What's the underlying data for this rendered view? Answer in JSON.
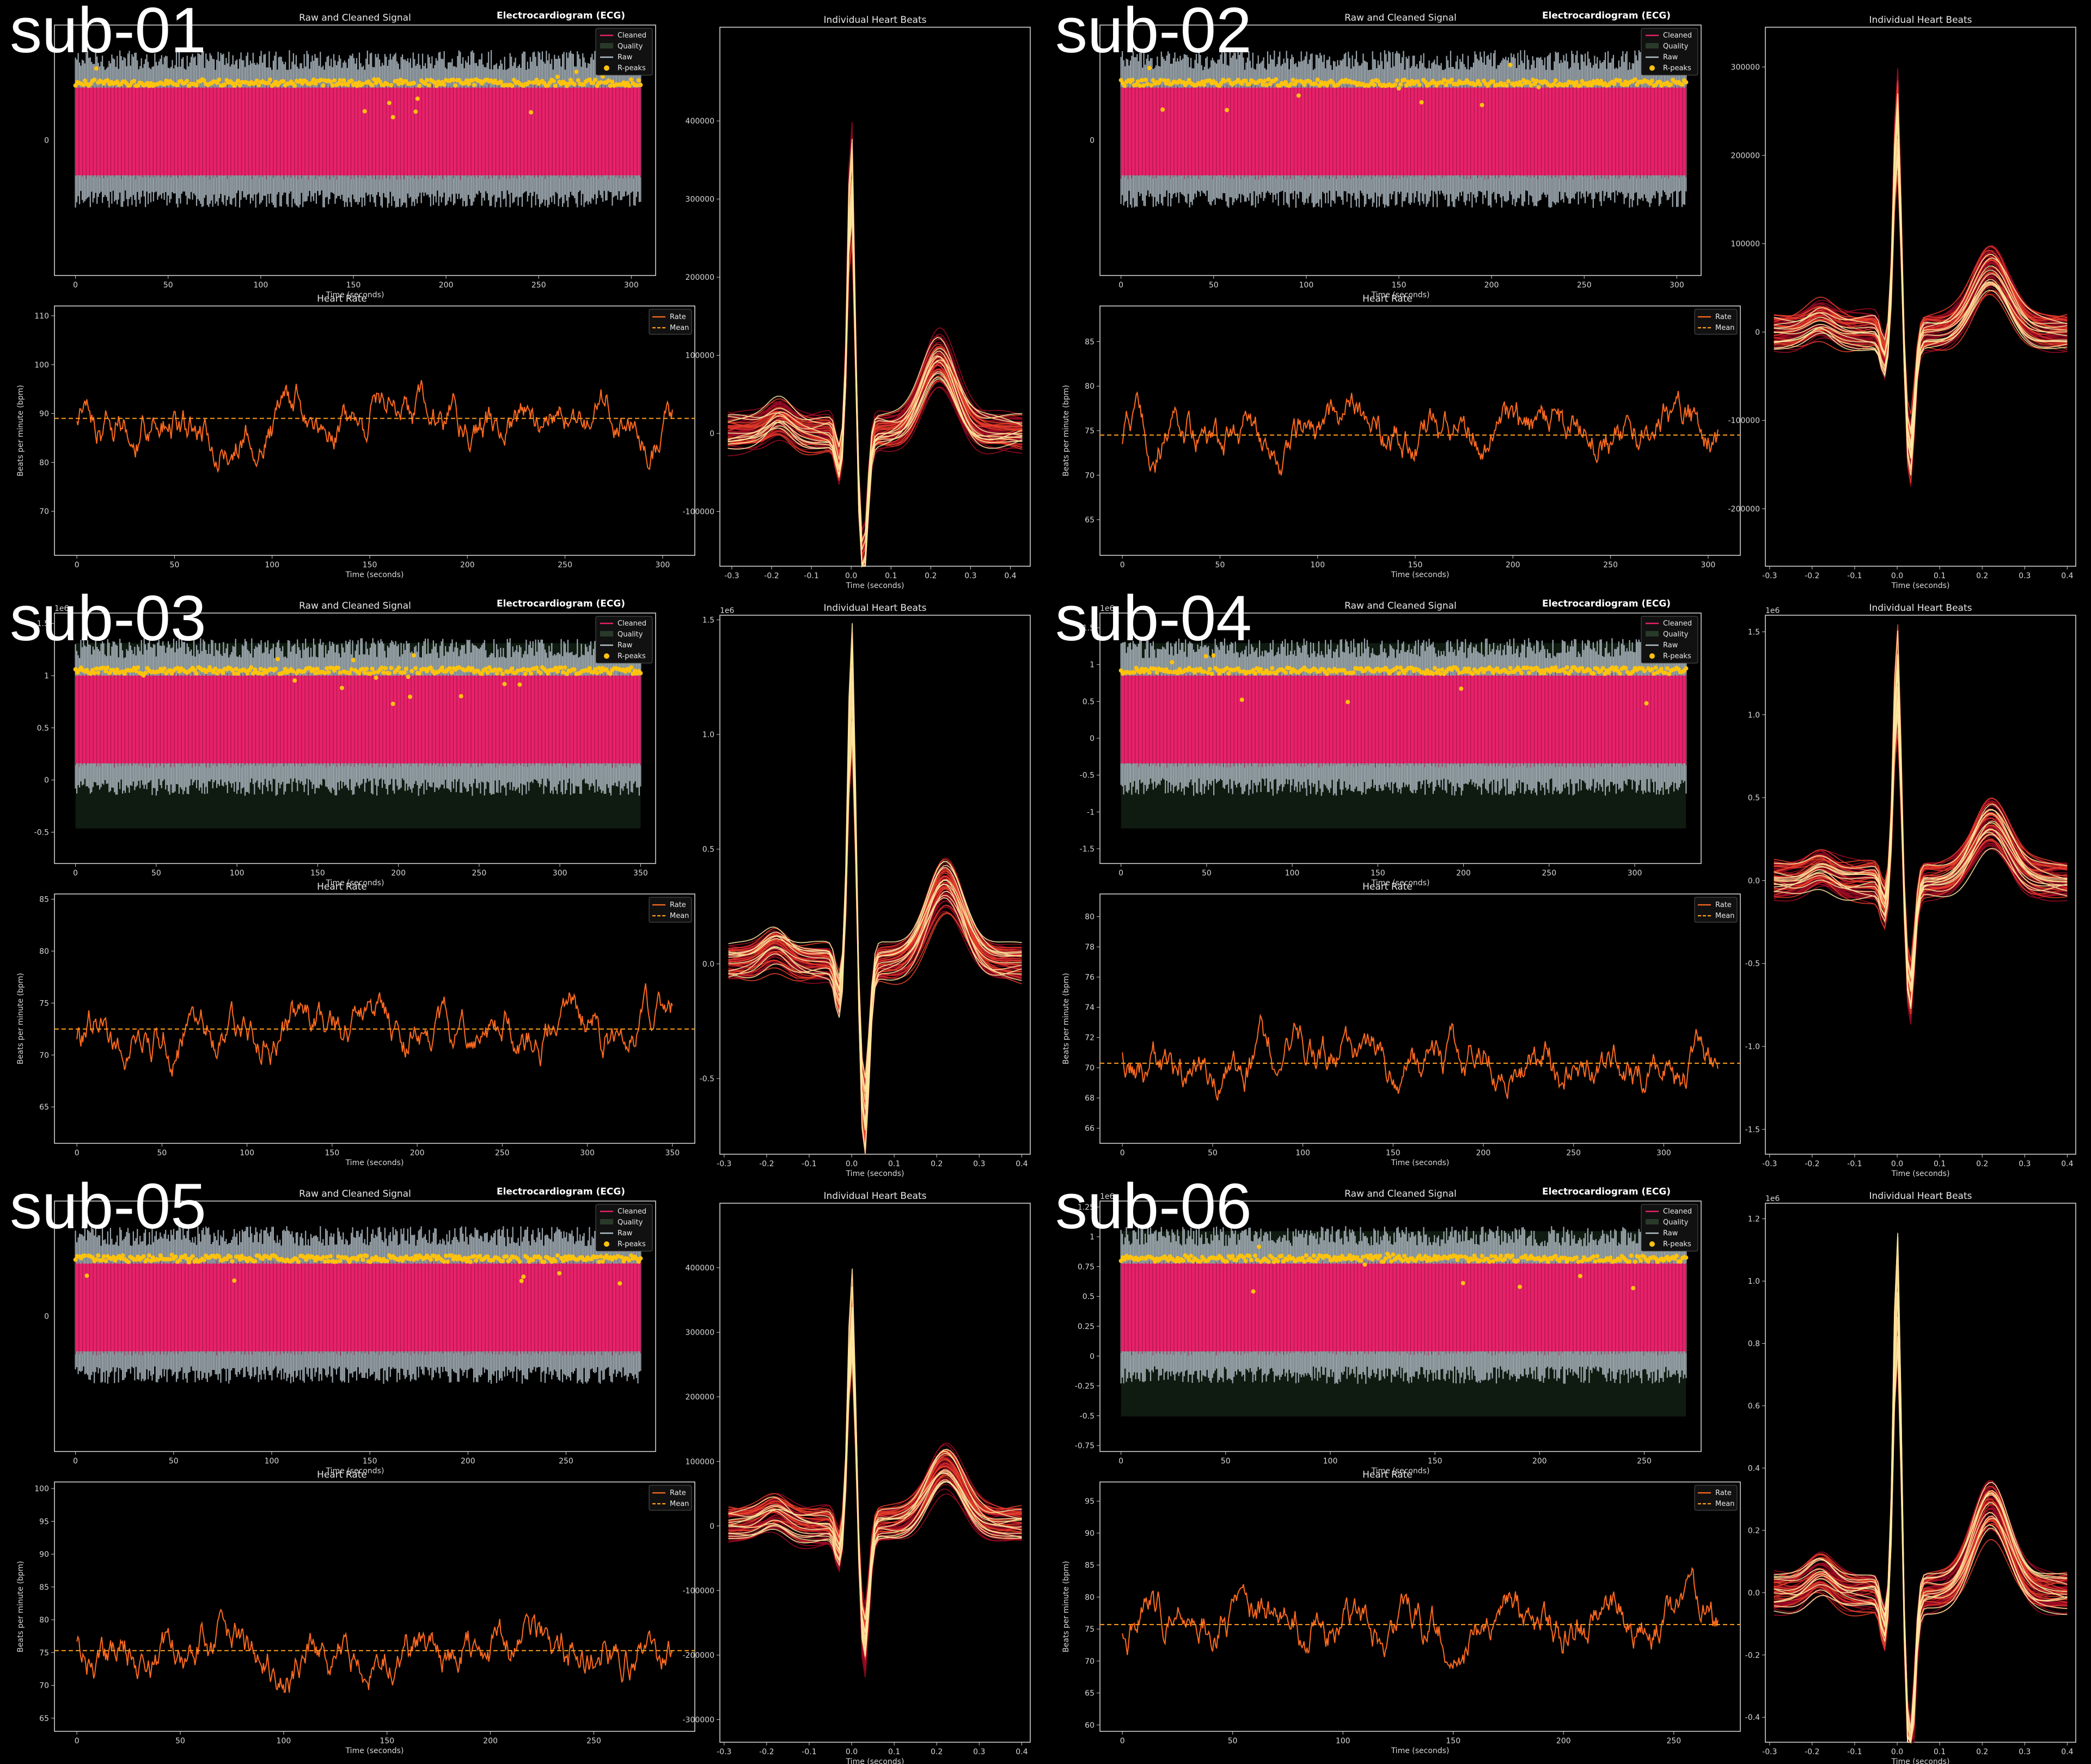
{
  "figure_title": "Electrocardiogram (ECG)",
  "panel_titles": {
    "signal": "Raw and Cleaned Signal",
    "rate": "Heart Rate",
    "beats": "Individual Heart Beats"
  },
  "axis_labels": {
    "time": "Time (seconds)",
    "bpm": "Beats per minute (bpm)"
  },
  "legends": {
    "signal": [
      "Cleaned",
      "Quality",
      "Raw",
      "R-peaks"
    ],
    "rate": [
      "Rate",
      "Mean"
    ]
  },
  "colors": {
    "background": "#000000",
    "cleaned": "#e8216a",
    "raw": "#b3c0c8",
    "quality": "#0f1a10",
    "rpeaks": "#ffc20e",
    "rate": "#ff6a1f",
    "mean": "#ff9f1a",
    "beats_dark": "#9c0a25",
    "beats_light": "#ffe9a0"
  },
  "chart_data": [
    {
      "subject": "sub-01",
      "type": "line",
      "signal": {
        "x_range": [
          0,
          305
        ],
        "x_ticks": [
          0,
          50,
          100,
          150,
          200,
          250,
          300
        ],
        "y_ticks_shown": [
          "0"
        ],
        "scale_label": ""
      },
      "heart_rate": {
        "x_range": [
          0,
          305
        ],
        "x_ticks": [
          0,
          50,
          100,
          150,
          200,
          250,
          300
        ],
        "y_range": [
          61,
          112
        ],
        "y_ticks": [
          70,
          80,
          90,
          100,
          110
        ],
        "mean": 89
      },
      "heartbeats": {
        "x_range": [
          -0.33,
          0.45
        ],
        "x_ticks": [
          -0.3,
          -0.2,
          -0.1,
          0.0,
          0.1,
          0.2,
          0.3,
          0.4
        ],
        "y_range": [
          -170000,
          520000
        ],
        "y_ticks": [
          -100000,
          0,
          100000,
          200000,
          300000,
          400000
        ],
        "y_tick_labels": [
          "-100000",
          "0",
          "100000",
          "200000",
          "300000",
          "400000"
        ],
        "scale_label": ""
      }
    },
    {
      "subject": "sub-02",
      "type": "line",
      "signal": {
        "x_range": [
          0,
          305
        ],
        "x_ticks": [
          0,
          50,
          100,
          150,
          200,
          250,
          300
        ],
        "y_ticks_shown": [
          "0"
        ],
        "scale_label": ""
      },
      "heart_rate": {
        "x_range": [
          0,
          305
        ],
        "x_ticks": [
          0,
          50,
          100,
          150,
          200,
          250,
          300
        ],
        "y_range": [
          61,
          89
        ],
        "y_ticks": [
          65,
          70,
          75,
          80,
          85
        ],
        "mean": 74.5
      },
      "heartbeats": {
        "x_range": [
          -0.31,
          0.42
        ],
        "x_ticks": [
          -0.3,
          -0.2,
          -0.1,
          0.0,
          0.1,
          0.2,
          0.3,
          0.4
        ],
        "y_range": [
          -265000,
          345000
        ],
        "y_ticks": [
          -200000,
          -100000,
          0,
          100000,
          200000,
          300000
        ],
        "y_tick_labels": [
          "-200000",
          "-100000",
          "0",
          "100000",
          "200000",
          "300000"
        ],
        "scale_label": ""
      }
    },
    {
      "subject": "sub-03",
      "type": "line",
      "signal": {
        "x_range": [
          0,
          350
        ],
        "x_ticks": [
          0,
          50,
          100,
          150,
          200,
          250,
          300,
          350
        ],
        "y_ticks": [
          -0.5,
          0.0,
          0.5,
          1.0,
          1.5
        ],
        "y_range": [
          -0.8,
          1.6
        ],
        "scale_label": "1e6"
      },
      "heart_rate": {
        "x_range": [
          0,
          350
        ],
        "x_ticks": [
          0,
          50,
          100,
          150,
          200,
          250,
          300,
          350
        ],
        "y_range": [
          61.5,
          85.5
        ],
        "y_ticks": [
          65,
          70,
          75,
          80,
          85
        ],
        "mean": 72.5
      },
      "heartbeats": {
        "x_range": [
          -0.31,
          0.42
        ],
        "x_ticks": [
          -0.3,
          -0.2,
          -0.1,
          0.0,
          0.1,
          0.2,
          0.3,
          0.4
        ],
        "y_range": [
          -0.83,
          1.52
        ],
        "y_ticks": [
          -0.5,
          0.0,
          0.5,
          1.0,
          1.5
        ],
        "y_tick_labels": [
          "-0.5",
          "0.0",
          "0.5",
          "1.0",
          "1.5"
        ],
        "scale_label": "1e6"
      }
    },
    {
      "subject": "sub-04",
      "type": "line",
      "signal": {
        "x_range": [
          0,
          330
        ],
        "x_ticks": [
          0,
          50,
          100,
          150,
          200,
          250,
          300
        ],
        "y_ticks": [
          -1.5,
          -1.0,
          -0.5,
          0.0,
          0.5,
          1.0,
          1.5
        ],
        "y_range": [
          -1.7,
          1.7
        ],
        "scale_label": "1e6"
      },
      "heart_rate": {
        "x_range": [
          0,
          330
        ],
        "x_ticks": [
          0,
          50,
          100,
          150,
          200,
          250,
          300
        ],
        "y_range": [
          65,
          81.5
        ],
        "y_ticks": [
          66,
          68,
          70,
          72,
          74,
          76,
          78,
          80
        ],
        "mean": 70.3
      },
      "heartbeats": {
        "x_range": [
          -0.31,
          0.42
        ],
        "x_ticks": [
          -0.3,
          -0.2,
          -0.1,
          0.0,
          0.1,
          0.2,
          0.3,
          0.4
        ],
        "y_range": [
          -1.65,
          1.6
        ],
        "y_ticks": [
          -1.5,
          -1.0,
          -0.5,
          0.0,
          0.5,
          1.0,
          1.5
        ],
        "y_tick_labels": [
          "-1.5",
          "-1.0",
          "-0.5",
          "0.0",
          "0.5",
          "1.0",
          "1.5"
        ],
        "scale_label": "1e6"
      }
    },
    {
      "subject": "sub-05",
      "type": "line",
      "signal": {
        "x_range": [
          0,
          288
        ],
        "x_ticks": [
          0,
          50,
          100,
          150,
          200,
          250
        ],
        "y_ticks_shown": [
          "0"
        ],
        "scale_label": ""
      },
      "heart_rate": {
        "x_range": [
          0,
          288
        ],
        "x_ticks": [
          0,
          50,
          100,
          150,
          200,
          250
        ],
        "y_range": [
          63,
          101
        ],
        "y_ticks": [
          65,
          70,
          75,
          80,
          85,
          90,
          95,
          100
        ],
        "mean": 75.3
      },
      "heartbeats": {
        "x_range": [
          -0.31,
          0.42
        ],
        "x_ticks": [
          -0.3,
          -0.2,
          -0.1,
          0.0,
          0.1,
          0.2,
          0.3,
          0.4
        ],
        "y_range": [
          -335000,
          500000
        ],
        "y_ticks": [
          -300000,
          -200000,
          -100000,
          0,
          100000,
          200000,
          300000,
          400000
        ],
        "y_tick_labels": [
          "-300000",
          "-200000",
          "-100000",
          "0",
          "100000",
          "200000",
          "300000",
          "400000"
        ],
        "scale_label": ""
      }
    },
    {
      "subject": "sub-06",
      "type": "line",
      "signal": {
        "x_range": [
          0,
          270
        ],
        "x_ticks": [
          0,
          50,
          100,
          150,
          200,
          250
        ],
        "y_ticks": [
          -0.75,
          -0.5,
          -0.25,
          0.0,
          0.25,
          0.5,
          0.75,
          1.0,
          1.25
        ],
        "y_range": [
          -0.8,
          1.3
        ],
        "scale_label": "1e6"
      },
      "heart_rate": {
        "x_range": [
          0,
          270
        ],
        "x_ticks": [
          0,
          50,
          100,
          150,
          200,
          250
        ],
        "y_range": [
          59,
          98
        ],
        "y_ticks": [
          60,
          65,
          70,
          75,
          80,
          85,
          90,
          95
        ],
        "mean": 75.7
      },
      "heartbeats": {
        "x_range": [
          -0.31,
          0.42
        ],
        "x_ticks": [
          -0.3,
          -0.2,
          -0.1,
          0.0,
          0.1,
          0.2,
          0.3,
          0.4
        ],
        "y_range": [
          -0.48,
          1.25
        ],
        "y_ticks": [
          -0.4,
          -0.2,
          0.0,
          0.2,
          0.4,
          0.6,
          0.8,
          1.0,
          1.2
        ],
        "y_tick_labels": [
          "-0.4",
          "-0.2",
          "0.0",
          "0.2",
          "0.4",
          "0.6",
          "0.8",
          "1.0",
          "1.2"
        ],
        "scale_label": "1e6"
      }
    }
  ]
}
